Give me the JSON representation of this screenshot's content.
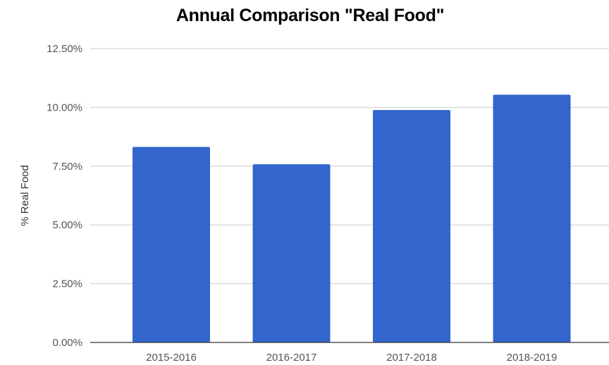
{
  "chart_data": {
    "type": "bar",
    "title": "Annual Comparison \"Real Food\"",
    "xlabel": "",
    "ylabel": "% Real Food",
    "categories": [
      "2015-2016",
      "2016-2017",
      "2017-2018",
      "2018-2019"
    ],
    "values": [
      8.32,
      7.58,
      9.89,
      10.54
    ],
    "ylim": [
      0,
      12.5
    ],
    "yticks": [
      "0.00%",
      "2.50%",
      "5.00%",
      "7.50%",
      "10.00%",
      "12.50%"
    ],
    "grid": true,
    "legend": "none",
    "colors": {
      "bar": "#3366cc",
      "gridline": "#cccccc",
      "baseline": "#333333"
    }
  }
}
